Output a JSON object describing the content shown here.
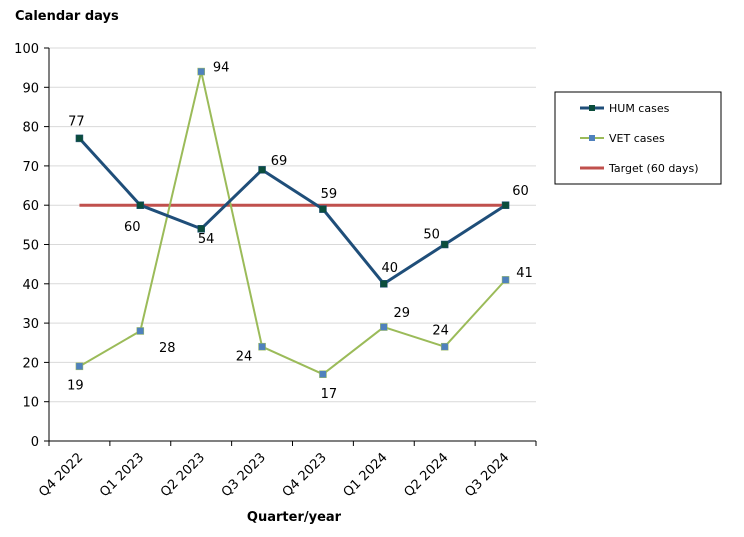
{
  "chart_data": {
    "type": "line",
    "title": "",
    "ylabel": "Calendar days",
    "xlabel": "Quarter/year",
    "categories": [
      "Q4 2022",
      "Q1 2023",
      "Q2 2023",
      "Q3 2023",
      "Q4 2023",
      "Q1 2024",
      "Q2 2024",
      "Q3 2024"
    ],
    "ylim": [
      0,
      100
    ],
    "yticks": [
      "0",
      "10",
      "20",
      "30",
      "40",
      "50",
      "60",
      "70",
      "80",
      "90",
      "100"
    ],
    "grid": true,
    "legend_position": "right",
    "series": [
      {
        "name": "HUM cases",
        "values": [
          77,
          60,
          54,
          69,
          59,
          40,
          50,
          60
        ],
        "labels": [
          "77",
          "60",
          "54",
          "69",
          "59",
          "40",
          "50",
          "60"
        ],
        "color": "#1f4e79",
        "marker_color": "#0b4d3c",
        "marker": "square"
      },
      {
        "name": "VET cases",
        "values": [
          19,
          28,
          94,
          24,
          17,
          29,
          24,
          41
        ],
        "labels": [
          "19",
          "28",
          "94",
          "24",
          "17",
          "29",
          "24",
          "41"
        ],
        "color": "#9bbb59",
        "marker_color": "#4f81bd",
        "marker": "square"
      },
      {
        "name": "Target (60 days)",
        "values": [
          60,
          60,
          60,
          60,
          60,
          60,
          60,
          60
        ],
        "color": "#c0504d"
      }
    ]
  }
}
